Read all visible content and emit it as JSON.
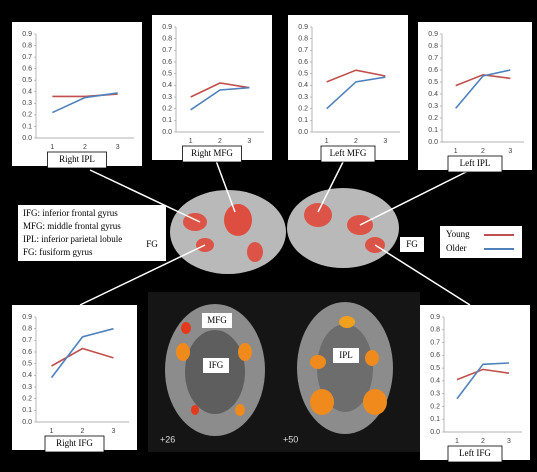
{
  "chart_data": [
    {
      "type": "line",
      "title": "Right IPL",
      "categories": [
        "1",
        "2",
        "3"
      ],
      "series": [
        {
          "values": [
            0.36,
            0.36,
            0.38
          ]
        },
        {
          "values": [
            0.22,
            0.35,
            0.39
          ]
        }
      ],
      "ylim": [
        0,
        0.9
      ],
      "yticks": [
        {
          "value": 0,
          "label": "0.0"
        },
        0.1,
        0.2,
        0.3,
        0.4,
        0.5,
        0.6,
        0.7,
        0.8,
        0.9
      ]
    },
    {
      "type": "line",
      "title": "Right MFG",
      "categories": [
        "1",
        "2",
        "3"
      ],
      "series": [
        {
          "values": [
            0.3,
            0.42,
            0.38
          ]
        },
        {
          "values": [
            0.19,
            0.36,
            0.38
          ]
        }
      ],
      "ylim": [
        0,
        0.9
      ],
      "yticks": [
        {
          "value": 0,
          "label": "0.0"
        },
        0.1,
        0.2,
        0.3,
        0.4,
        0.5,
        0.6,
        0.7,
        0.8,
        0.9
      ]
    },
    {
      "type": "line",
      "title": "Left MFG",
      "categories": [
        "1",
        "2",
        "3"
      ],
      "series": [
        {
          "values": [
            0.43,
            0.53,
            0.48
          ]
        },
        {
          "values": [
            0.2,
            0.43,
            0.47
          ]
        }
      ],
      "ylim": [
        0,
        0.9
      ],
      "yticks": [
        {
          "value": 0,
          "label": "0.0"
        },
        0.1,
        0.2,
        0.3,
        0.4,
        0.5,
        0.6,
        0.7,
        0.8,
        0.9
      ]
    },
    {
      "type": "line",
      "title": "Left IPL",
      "categories": [
        "1",
        "2",
        "3"
      ],
      "series": [
        {
          "values": [
            0.47,
            0.56,
            0.53
          ]
        },
        {
          "values": [
            0.28,
            0.55,
            0.6
          ]
        }
      ],
      "ylim": [
        0,
        0.9
      ],
      "yticks": [
        {
          "value": 0,
          "label": "0.0"
        },
        0.1,
        0.2,
        0.3,
        0.4,
        0.5,
        0.6,
        0.7,
        0.8,
        0.9
      ]
    },
    {
      "type": "line",
      "title": "Right IFG",
      "categories": [
        "1",
        "2",
        "3"
      ],
      "series": [
        {
          "values": [
            0.48,
            0.63,
            0.55
          ]
        },
        {
          "values": [
            0.38,
            0.73,
            0.8
          ]
        }
      ],
      "ylim": [
        0,
        0.9
      ],
      "yticks": [
        {
          "value": 0,
          "label": "0.0"
        },
        0.1,
        0.2,
        0.3,
        0.4,
        0.5,
        0.6,
        0.7,
        0.8,
        0.9
      ]
    },
    {
      "type": "line",
      "title": "Left IFG",
      "categories": [
        "1",
        "2",
        "3"
      ],
      "series": [
        {
          "values": [
            0.41,
            0.49,
            0.46
          ]
        },
        {
          "values": [
            0.26,
            0.53,
            0.54
          ]
        }
      ],
      "ylim": [
        0,
        0.9
      ],
      "yticks": [
        {
          "value": 0,
          "label": "0.0"
        },
        0.1,
        0.2,
        0.3,
        0.4,
        0.5,
        0.6,
        0.7,
        0.8,
        0.9
      ]
    }
  ],
  "legend": [
    {
      "name": "Young",
      "color": "#c0504d"
    },
    {
      "name": "Older",
      "color": "#4f81bd"
    }
  ],
  "definitions": [
    "IFG: inferior frontal gyrus",
    "MFG: middle frontal gyrus",
    "IPL: inferior parietal lobule",
    "FG: fusiform gyrus"
  ],
  "brain_labels": {
    "fg_left": "FG",
    "fg_right": "FG",
    "mfg": "MFG",
    "ifg": "IFG",
    "ipl": "IPL",
    "slice_1": "+26",
    "slice_2": "+50"
  }
}
